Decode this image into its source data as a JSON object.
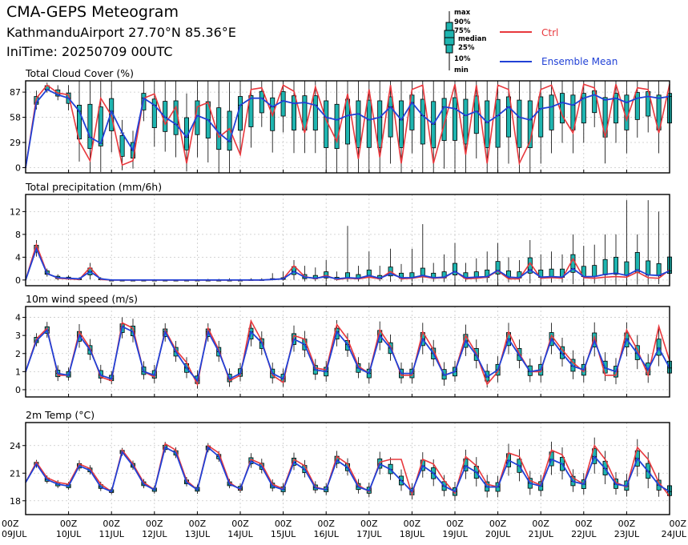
{
  "header": {
    "title": "CMA-GEPS Meteogram",
    "station": "KathmanduAirport 27.70°N 85.36°E",
    "init_time": "IniTime: 20250709 00UTC"
  },
  "legend": {
    "box_labels": [
      "max",
      "90%",
      "75%",
      "median",
      "25%",
      "10%",
      "min"
    ],
    "ctrl_label": "Ctrl",
    "mean_label": "Ensemble Mean",
    "colors": {
      "ctrl": "#e8383d",
      "mean": "#2141d6",
      "box": "#1fb5b0"
    }
  },
  "x_axis": {
    "tick_labels": [
      [
        "00Z",
        "09JUL"
      ],
      [
        "00Z",
        "10JUL"
      ],
      [
        "00Z",
        "11JUL"
      ],
      [
        "00Z",
        "12JUL"
      ],
      [
        "00Z",
        "13JUL"
      ],
      [
        "00Z",
        "14JUL"
      ],
      [
        "00Z",
        "15JUL"
      ],
      [
        "00Z",
        "16JUL"
      ],
      [
        "00Z",
        "17JUL"
      ],
      [
        "00Z",
        "18JUL"
      ],
      [
        "00Z",
        "19JUL"
      ],
      [
        "00Z",
        "20JUL"
      ],
      [
        "00Z",
        "21JUL"
      ],
      [
        "00Z",
        "22JUL"
      ],
      [
        "00Z",
        "23JUL"
      ],
      [
        "00Z",
        "24JUL"
      ]
    ]
  },
  "chart_data": [
    {
      "type": "line",
      "title": "Total Cloud Cover (%)",
      "x_unit": "forecast hour (6-hourly from 09JUL 00Z)",
      "ylim": [
        -6,
        100
      ],
      "yticks": [
        0,
        29,
        58,
        87
      ],
      "grid": true,
      "ctrl": [
        0,
        80,
        95,
        86,
        84,
        30,
        8,
        80,
        60,
        3,
        8,
        80,
        85,
        50,
        70,
        5,
        70,
        75,
        35,
        45,
        15,
        90,
        92,
        60,
        95,
        88,
        40,
        93,
        55,
        30,
        85,
        10,
        90,
        12,
        95,
        5,
        90,
        95,
        5,
        50,
        96,
        15,
        95,
        5,
        95,
        90,
        5,
        30,
        90,
        95,
        60,
        40,
        96,
        92,
        35,
        96,
        55,
        92,
        90,
        40,
        96
      ],
      "mean": [
        0,
        75,
        90,
        84,
        80,
        65,
        35,
        28,
        65,
        40,
        20,
        80,
        72,
        58,
        50,
        35,
        60,
        55,
        40,
        30,
        72,
        80,
        80,
        70,
        77,
        74,
        75,
        72,
        58,
        55,
        60,
        62,
        55,
        58,
        70,
        55,
        75,
        60,
        50,
        70,
        68,
        60,
        65,
        52,
        60,
        70,
        58,
        55,
        68,
        70,
        75,
        72,
        80,
        84,
        78,
        80,
        75,
        80,
        82,
        80,
        82
      ],
      "p10": [
        0,
        70,
        88,
        80,
        70,
        20,
        5,
        10,
        30,
        5,
        5,
        60,
        35,
        30,
        25,
        8,
        25,
        20,
        5,
        5,
        30,
        35,
        55,
        30,
        50,
        30,
        30,
        30,
        5,
        5,
        10,
        5,
        5,
        5,
        20,
        5,
        30,
        10,
        5,
        15,
        15,
        10,
        25,
        5,
        5,
        20,
        5,
        5,
        20,
        30,
        40,
        30,
        40,
        55,
        20,
        40,
        30,
        45,
        50,
        30,
        40
      ],
      "p90": [
        0,
        85,
        96,
        92,
        90,
        85,
        90,
        85,
        92,
        45,
        35,
        92,
        90,
        88,
        90,
        70,
        90,
        90,
        85,
        80,
        95,
        95,
        96,
        93,
        97,
        96,
        96,
        96,
        95,
        90,
        96,
        95,
        96,
        95,
        97,
        95,
        97,
        96,
        94,
        96,
        97,
        96,
        97,
        95,
        97,
        97,
        96,
        95,
        97,
        97,
        97,
        97,
        97,
        97,
        96,
        97,
        97,
        97,
        97,
        97,
        97
      ]
    },
    {
      "type": "line",
      "title": "Total precipitation (mm/6h)",
      "ylim": [
        -1,
        15
      ],
      "yticks": [
        0,
        4,
        8,
        12
      ],
      "grid": true,
      "ctrl": [
        0,
        6.2,
        1.2,
        0.3,
        0.2,
        0.1,
        2.2,
        0.1,
        0,
        0,
        0,
        0,
        0,
        0,
        0,
        0,
        0,
        0,
        0,
        0,
        0,
        0,
        0,
        0.1,
        0.2,
        2.5,
        0.6,
        0.2,
        0.8,
        0.1,
        0.3,
        0.2,
        0.5,
        0.2,
        1.5,
        0.2,
        0.3,
        0.6,
        0.3,
        0.4,
        1.5,
        0.2,
        0.3,
        0.5,
        1.6,
        0.2,
        0.2,
        3.0,
        0.3,
        0.4,
        0.3,
        3.7,
        0.4,
        0.3,
        0.5,
        0.6,
        0.5,
        1.4,
        0.4,
        0.3,
        1.8
      ],
      "mean": [
        0,
        5.5,
        1.1,
        0.4,
        0.3,
        0.2,
        1.5,
        0.2,
        0,
        0,
        0,
        0,
        0,
        0,
        0,
        0,
        0,
        0,
        0,
        0,
        0,
        0,
        0,
        0.1,
        0.2,
        1.5,
        0.5,
        0.3,
        0.6,
        0.2,
        0.4,
        0.3,
        0.8,
        0.3,
        1.1,
        0.4,
        0.4,
        0.8,
        0.4,
        0.5,
        1.5,
        0.4,
        0.5,
        0.6,
        1.7,
        0.5,
        0.4,
        1.8,
        0.5,
        0.6,
        0.5,
        2.0,
        0.6,
        0.6,
        1.0,
        1.2,
        0.8,
        1.8,
        0.9,
        0.8,
        1.6
      ],
      "p10": [
        0,
        4.5,
        0.8,
        0.1,
        0.1,
        0,
        0.5,
        0,
        0,
        0,
        0,
        0,
        0,
        0,
        0,
        0,
        0,
        0,
        0,
        0,
        0,
        0,
        0,
        0,
        0,
        0.5,
        0,
        0,
        0,
        0,
        0,
        0,
        0,
        0,
        0.2,
        0,
        0,
        0,
        0,
        0,
        0.2,
        0,
        0,
        0,
        0.3,
        0,
        0,
        0.3,
        0,
        0,
        0,
        0.3,
        0,
        0,
        0,
        0,
        0,
        0.2,
        0,
        0,
        0.2
      ],
      "p90": [
        0,
        6.5,
        1.8,
        0.8,
        0.6,
        0.3,
        2.5,
        0.3,
        0,
        0,
        0,
        0,
        0,
        0,
        0,
        0,
        0,
        0,
        0,
        0,
        0,
        0.1,
        0.1,
        0.3,
        0.5,
        2.8,
        1.2,
        1.0,
        1.8,
        0.6,
        1.6,
        1.2,
        2.2,
        1.0,
        2.8,
        1.5,
        1.6,
        2.6,
        1.5,
        1.8,
        3.6,
        1.6,
        1.8,
        2.2,
        4.0,
        2.0,
        1.8,
        4.8,
        2.2,
        2.4,
        2.4,
        5.5,
        3.0,
        3.2,
        4.5,
        5.0,
        4.0,
        6.0,
        4.2,
        3.6,
        5.0
      ],
      "max": [
        0,
        7.0,
        2.0,
        1.0,
        0.8,
        0.5,
        3.0,
        0.5,
        0.1,
        0,
        0,
        0,
        0,
        0,
        0,
        0,
        0,
        0.2,
        0.2,
        0.3,
        0.2,
        0.3,
        0.3,
        1.2,
        1.5,
        3.5,
        2.5,
        2.2,
        3.5,
        1.5,
        9.5,
        2.5,
        5.0,
        2.5,
        5.5,
        2.8,
        5.5,
        9.8,
        3.0,
        4.5,
        6.5,
        3.0,
        3.8,
        5.0,
        6.5,
        4.0,
        3.5,
        7.0,
        4.5,
        5.0,
        4.5,
        8.0,
        6.0,
        6.2,
        8.0,
        8.0,
        14.0,
        8.0,
        14.0,
        12.0,
        4.5
      ]
    },
    {
      "type": "line",
      "title": "10m wind speed (m/s)",
      "ylim": [
        -0.4,
        4.6
      ],
      "yticks": [
        0,
        1,
        2,
        3,
        4
      ],
      "grid": true,
      "ctrl": [
        1.0,
        2.8,
        3.4,
        0.8,
        0.8,
        3.2,
        2.3,
        0.7,
        0.5,
        3.7,
        3.4,
        1.0,
        0.7,
        3.3,
        2.2,
        1.5,
        0.3,
        3.4,
        2.2,
        0.5,
        0.8,
        3.8,
        2.7,
        0.8,
        0.4,
        3.0,
        2.8,
        1.2,
        1.1,
        3.6,
        2.8,
        1.3,
        0.9,
        3.3,
        2.4,
        0.8,
        0.8,
        3.2,
        2.2,
        0.8,
        1.0,
        3.0,
        2.0,
        0.3,
        1.0,
        3.2,
        2.0,
        1.0,
        1.0,
        3.0,
        2.2,
        1.5,
        1.0,
        2.9,
        0.8,
        0.8,
        3.3,
        2.2,
        0.8,
        3.5,
        1.6
      ],
      "mean": [
        1.0,
        2.7,
        3.3,
        0.9,
        0.8,
        3.0,
        2.2,
        0.8,
        0.6,
        3.5,
        3.2,
        1.0,
        0.8,
        3.2,
        2.1,
        1.2,
        0.5,
        3.2,
        2.1,
        0.6,
        0.9,
        3.2,
        2.6,
        0.9,
        0.6,
        2.8,
        2.5,
        1.1,
        1.0,
        3.2,
        2.5,
        1.2,
        0.9,
        3.0,
        2.3,
        0.9,
        0.9,
        2.8,
        2.0,
        0.8,
        1.0,
        2.7,
        1.9,
        0.7,
        1.1,
        2.8,
        1.9,
        1.0,
        1.1,
        2.8,
        2.0,
        1.3,
        1.1,
        2.7,
        1.2,
        1.0,
        2.8,
        2.0,
        1.1,
        2.3,
        1.2
      ],
      "p10": [
        1.0,
        2.5,
        3.0,
        0.6,
        0.6,
        2.5,
        1.8,
        0.5,
        0.4,
        3.0,
        2.8,
        0.7,
        0.5,
        2.8,
        1.7,
        0.8,
        0.2,
        2.8,
        1.7,
        0.3,
        0.6,
        2.6,
        2.1,
        0.5,
        0.3,
        2.3,
        2.0,
        0.7,
        0.6,
        2.6,
        2.0,
        0.8,
        0.5,
        2.4,
        1.8,
        0.5,
        0.5,
        2.2,
        1.5,
        0.4,
        0.6,
        2.1,
        1.4,
        0.3,
        0.6,
        2.2,
        1.4,
        0.6,
        0.6,
        2.2,
        1.5,
        0.8,
        0.6,
        2.1,
        0.7,
        0.5,
        2.1,
        1.4,
        0.6,
        1.6,
        0.7
      ],
      "p90": [
        1.0,
        3.0,
        3.6,
        1.2,
        1.1,
        3.4,
        2.6,
        1.2,
        0.9,
        3.8,
        3.7,
        1.4,
        1.2,
        3.5,
        2.5,
        1.6,
        0.9,
        3.5,
        2.5,
        1.0,
        1.3,
        3.6,
        3.0,
        1.3,
        1.0,
        3.3,
        3.0,
        1.5,
        1.4,
        3.6,
        2.9,
        1.6,
        1.3,
        3.5,
        2.8,
        1.3,
        1.3,
        3.4,
        2.5,
        1.3,
        1.4,
        3.3,
        2.5,
        1.2,
        1.6,
        3.4,
        2.5,
        1.5,
        1.6,
        3.4,
        2.6,
        1.9,
        1.6,
        3.4,
        1.8,
        1.5,
        3.4,
        2.7,
        1.7,
        3.1,
        1.8
      ]
    },
    {
      "type": "line",
      "title": "2m Temp (°C)",
      "ylim": [
        16.5,
        26.5
      ],
      "yticks": [
        18,
        21,
        24
      ],
      "grid": true,
      "ctrl": [
        20.0,
        22.2,
        20.5,
        20.0,
        19.8,
        22.0,
        21.5,
        19.8,
        19.0,
        23.5,
        22.0,
        20.0,
        19.2,
        24.2,
        23.5,
        20.2,
        19.2,
        24.0,
        23.2,
        20.0,
        19.2,
        22.5,
        22.0,
        19.8,
        19.3,
        22.5,
        21.8,
        19.5,
        19.2,
        22.8,
        22.0,
        19.7,
        19.0,
        22.2,
        22.5,
        22.5,
        18.7,
        22.5,
        22.0,
        20.2,
        18.8,
        22.8,
        21.8,
        19.8,
        19.5,
        23.2,
        22.8,
        20.2,
        19.7,
        23.5,
        23.0,
        20.5,
        19.8,
        24.0,
        22.5,
        20.0,
        19.5,
        23.8,
        22.5,
        20.0,
        18.5
      ],
      "mean": [
        20.0,
        22.0,
        20.3,
        19.8,
        19.6,
        21.8,
        21.3,
        19.5,
        19.0,
        23.3,
        21.8,
        19.8,
        19.2,
        23.8,
        23.2,
        20.0,
        19.2,
        23.8,
        22.8,
        19.8,
        19.3,
        22.3,
        21.7,
        19.6,
        19.2,
        22.2,
        21.4,
        19.4,
        19.2,
        22.4,
        21.6,
        19.5,
        19.1,
        22.0,
        21.4,
        20.2,
        19.0,
        21.8,
        21.0,
        19.6,
        19.0,
        21.8,
        21.1,
        19.5,
        19.5,
        22.4,
        21.8,
        19.9,
        19.6,
        22.5,
        22.0,
        20.1,
        19.8,
        22.8,
        21.5,
        19.8,
        19.6,
        22.6,
        21.2,
        19.7,
        19.0
      ],
      "p10": [
        20.0,
        21.7,
        20.0,
        19.5,
        19.3,
        21.4,
        21.0,
        19.2,
        18.8,
        23.0,
        21.5,
        19.5,
        18.9,
        23.4,
        22.8,
        19.7,
        18.9,
        23.4,
        22.4,
        19.5,
        19.0,
        21.8,
        21.2,
        19.2,
        18.8,
        21.6,
        20.8,
        19.0,
        18.8,
        21.8,
        21.0,
        19.0,
        18.6,
        21.2,
        20.6,
        19.4,
        18.4,
        20.9,
        20.0,
        18.8,
        18.3,
        20.8,
        20.0,
        18.7,
        18.7,
        21.2,
        20.6,
        19.0,
        18.8,
        21.3,
        20.8,
        19.3,
        19.0,
        21.5,
        20.3,
        19.0,
        18.8,
        21.2,
        19.9,
        18.8,
        18.2
      ],
      "p90": [
        20.0,
        22.3,
        20.6,
        20.1,
        19.9,
        22.2,
        21.7,
        19.9,
        19.3,
        23.6,
        22.2,
        20.2,
        19.5,
        24.2,
        23.6,
        20.4,
        19.6,
        24.1,
        23.2,
        20.2,
        19.7,
        22.9,
        22.3,
        20.1,
        19.7,
        22.9,
        22.1,
        19.9,
        19.7,
        23.1,
        22.3,
        20.1,
        19.7,
        22.9,
        22.3,
        21.0,
        19.6,
        22.8,
        22.0,
        20.4,
        19.7,
        23.0,
        22.2,
        20.4,
        20.3,
        23.6,
        23.0,
        20.8,
        20.4,
        23.8,
        23.2,
        21.0,
        20.6,
        24.2,
        22.8,
        20.7,
        20.5,
        24.0,
        22.6,
        20.6,
        20.0
      ]
    }
  ]
}
